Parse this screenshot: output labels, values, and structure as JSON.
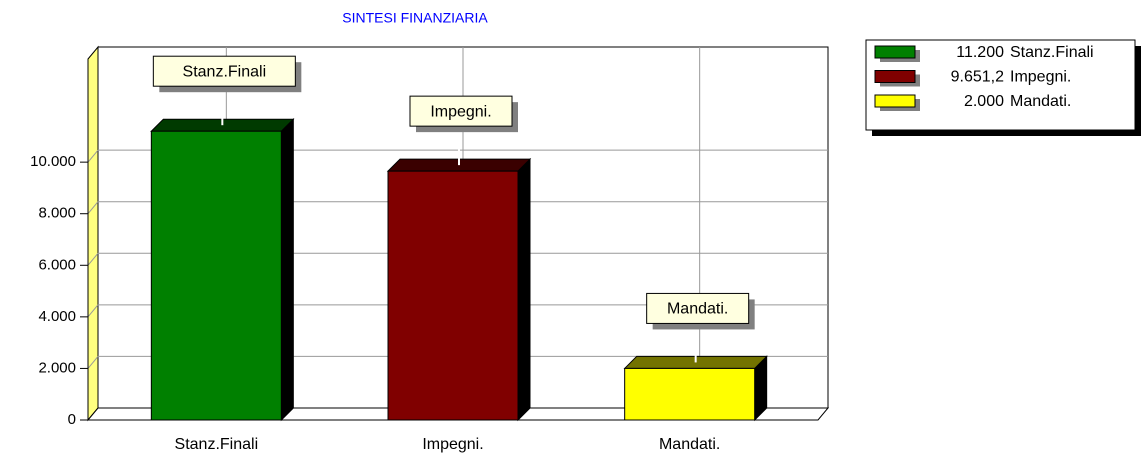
{
  "chart_data": {
    "type": "bar3d",
    "title": "SINTESI FINANZIARIA",
    "categories": [
      "Stanz.Finali",
      "Impegni.",
      "Mandati."
    ],
    "values": [
      11200,
      9651.2,
      2000
    ],
    "value_labels": [
      "11.200",
      "9.651,2",
      "2.000"
    ],
    "colors": [
      "#008000",
      "#800000",
      "#ffff00"
    ],
    "ylim": [
      0,
      14000
    ],
    "yticks": [
      0,
      {
        "value": 2000,
        "label": "2.000"
      },
      {
        "value": 4000,
        "label": "4.000"
      },
      {
        "value": 6000,
        "label": "6.000"
      },
      {
        "value": 8000,
        "label": "8.000"
      },
      {
        "value": 10000,
        "label": "10.000"
      }
    ],
    "grid": true,
    "legend": "top-right"
  }
}
